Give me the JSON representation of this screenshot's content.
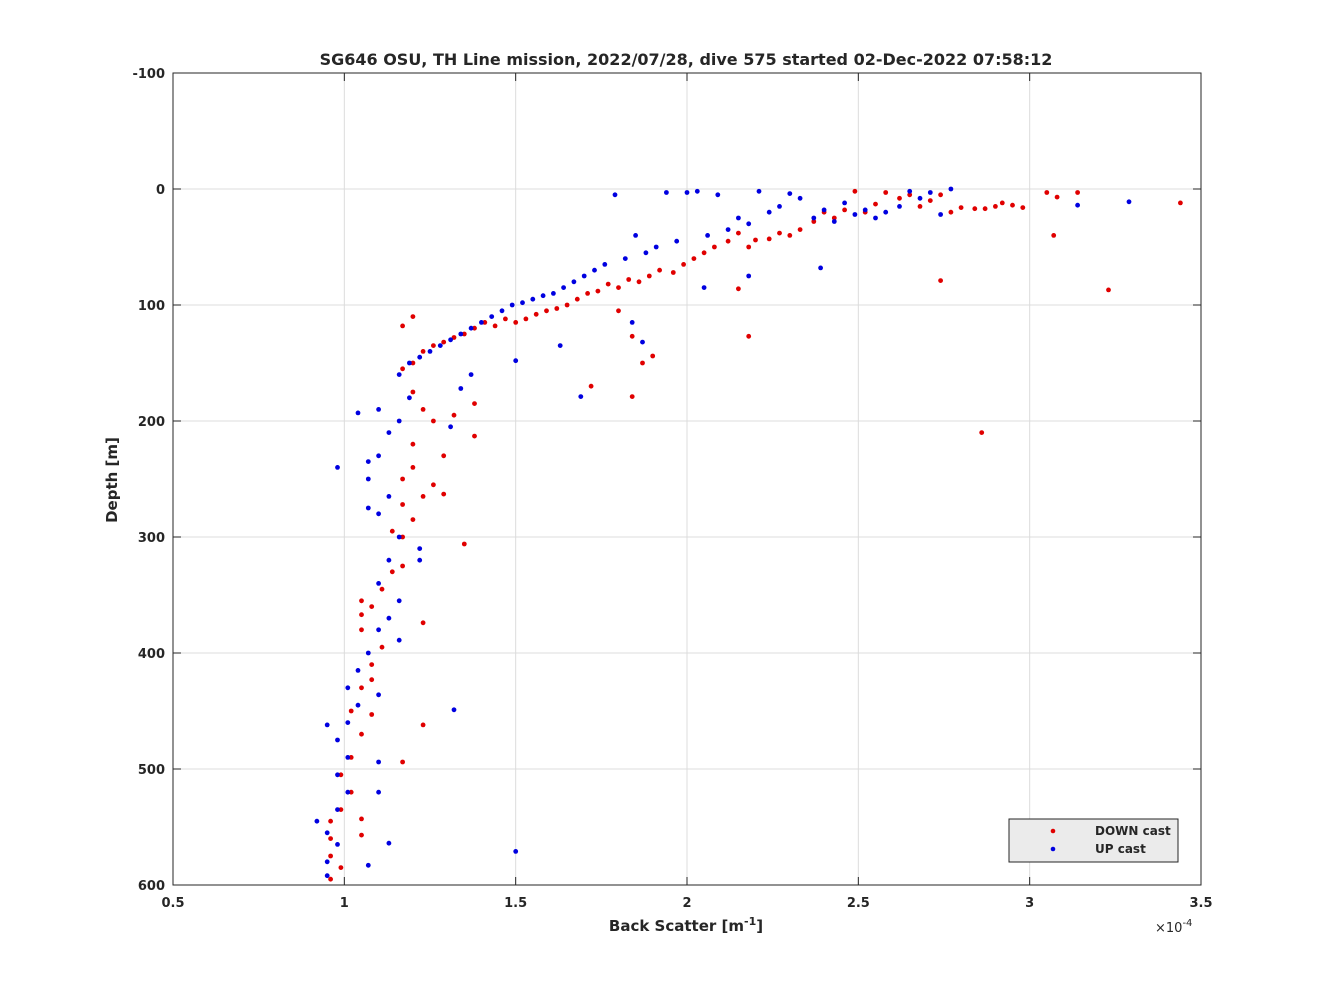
{
  "chart_data": {
    "type": "scatter",
    "title": "SG646 OSU, TH Line mission, 2022/07/28, dive 575 started 02-Dec-2022 07:58:12",
    "xlabel": "Back Scatter [m",
    "xlabel_sup": "-1",
    "xlabel_tail": "]",
    "ylabel": "Depth [m]",
    "x_multiplier_prefix": "×10",
    "x_multiplier_exp": "-4",
    "xlim": [
      0.5,
      3.5
    ],
    "ylim": [
      -100,
      600
    ],
    "y_reversed": true,
    "grid": true,
    "legend_position": "bottom-right",
    "xticks": [
      0.5,
      1,
      1.5,
      2,
      2.5,
      3,
      3.5
    ],
    "xtick_labels": [
      "0.5",
      "1",
      "1.5",
      "2",
      "2.5",
      "3",
      "3.5"
    ],
    "yticks": [
      -100,
      0,
      100,
      200,
      300,
      400,
      500,
      600
    ],
    "ytick_labels": [
      "-100",
      "0",
      "100",
      "200",
      "300",
      "400",
      "500",
      "600"
    ],
    "series": [
      {
        "name": "DOWN cast",
        "color": "#e00000",
        "points": [
          [
            3.44,
            12
          ],
          [
            3.14,
            3
          ],
          [
            3.08,
            7
          ],
          [
            3.05,
            3
          ],
          [
            2.98,
            16
          ],
          [
            2.95,
            14
          ],
          [
            2.92,
            12
          ],
          [
            2.9,
            15
          ],
          [
            2.87,
            17
          ],
          [
            2.84,
            17
          ],
          [
            2.8,
            16
          ],
          [
            2.77,
            20
          ],
          [
            2.74,
            5
          ],
          [
            2.71,
            10
          ],
          [
            2.68,
            15
          ],
          [
            2.65,
            5
          ],
          [
            2.62,
            8
          ],
          [
            2.58,
            3
          ],
          [
            2.55,
            13
          ],
          [
            2.52,
            20
          ],
          [
            2.49,
            2
          ],
          [
            2.46,
            18
          ],
          [
            2.43,
            25
          ],
          [
            2.4,
            20
          ],
          [
            2.37,
            28
          ],
          [
            2.33,
            35
          ],
          [
            2.3,
            40
          ],
          [
            2.27,
            38
          ],
          [
            2.24,
            43
          ],
          [
            2.2,
            44
          ],
          [
            2.18,
            50
          ],
          [
            2.15,
            38
          ],
          [
            2.12,
            45
          ],
          [
            2.08,
            50
          ],
          [
            2.05,
            55
          ],
          [
            2.02,
            60
          ],
          [
            1.99,
            65
          ],
          [
            1.96,
            72
          ],
          [
            1.92,
            70
          ],
          [
            1.89,
            75
          ],
          [
            1.86,
            80
          ],
          [
            1.83,
            78
          ],
          [
            1.8,
            85
          ],
          [
            1.77,
            82
          ],
          [
            1.74,
            88
          ],
          [
            1.71,
            90
          ],
          [
            1.68,
            95
          ],
          [
            1.65,
            100
          ],
          [
            1.62,
            103
          ],
          [
            1.59,
            105
          ],
          [
            1.56,
            108
          ],
          [
            1.53,
            112
          ],
          [
            1.5,
            115
          ],
          [
            1.47,
            112
          ],
          [
            1.44,
            118
          ],
          [
            1.41,
            115
          ],
          [
            1.38,
            120
          ],
          [
            1.35,
            125
          ],
          [
            1.32,
            128
          ],
          [
            1.29,
            132
          ],
          [
            1.26,
            135
          ],
          [
            1.23,
            140
          ],
          [
            1.2,
            150
          ],
          [
            1.17,
            155
          ],
          [
            1.2,
            175
          ],
          [
            1.23,
            190
          ],
          [
            1.26,
            200
          ],
          [
            1.2,
            220
          ],
          [
            1.17,
            250
          ],
          [
            1.23,
            265
          ],
          [
            1.2,
            285
          ],
          [
            1.17,
            300
          ],
          [
            1.14,
            330
          ],
          [
            1.11,
            345
          ],
          [
            1.08,
            360
          ],
          [
            1.05,
            380
          ],
          [
            1.11,
            395
          ],
          [
            1.08,
            410
          ],
          [
            1.05,
            430
          ],
          [
            1.02,
            450
          ],
          [
            1.05,
            470
          ],
          [
            1.02,
            490
          ],
          [
            0.99,
            505
          ],
          [
            1.02,
            520
          ],
          [
            0.99,
            535
          ],
          [
            0.96,
            545
          ],
          [
            0.96,
            560
          ],
          [
            0.96,
            575
          ],
          [
            0.99,
            585
          ],
          [
            0.96,
            595
          ],
          [
            3.07,
            40
          ],
          [
            3.23,
            87
          ],
          [
            2.74,
            79
          ],
          [
            2.86,
            210
          ],
          [
            2.18,
            127
          ],
          [
            2.15,
            86
          ],
          [
            1.84,
            179
          ],
          [
            1.72,
            170
          ],
          [
            1.9,
            144
          ],
          [
            1.87,
            150
          ],
          [
            1.84,
            127
          ],
          [
            1.8,
            105
          ],
          [
            1.38,
            213
          ],
          [
            1.35,
            306
          ],
          [
            1.23,
            374
          ],
          [
            1.23,
            462
          ],
          [
            1.17,
            494
          ],
          [
            1.2,
            110
          ],
          [
            1.17,
            118
          ],
          [
            1.26,
            255
          ],
          [
            1.29,
            263
          ],
          [
            1.32,
            195
          ],
          [
            1.38,
            185
          ],
          [
            1.29,
            230
          ],
          [
            1.2,
            240
          ],
          [
            1.17,
            272
          ],
          [
            1.14,
            295
          ],
          [
            1.17,
            325
          ],
          [
            1.05,
            355
          ],
          [
            1.05,
            367
          ],
          [
            1.08,
            423
          ],
          [
            1.08,
            453
          ],
          [
            1.05,
            543
          ],
          [
            1.05,
            557
          ]
        ]
      },
      {
        "name": "UP cast",
        "color": "#0000e0",
        "points": [
          [
            3.29,
            11
          ],
          [
            3.14,
            14
          ],
          [
            2.77,
            0
          ],
          [
            2.74,
            22
          ],
          [
            2.71,
            3
          ],
          [
            2.68,
            8
          ],
          [
            2.65,
            2
          ],
          [
            2.62,
            15
          ],
          [
            2.58,
            20
          ],
          [
            2.55,
            25
          ],
          [
            2.52,
            18
          ],
          [
            2.49,
            22
          ],
          [
            2.46,
            12
          ],
          [
            2.43,
            28
          ],
          [
            2.4,
            18
          ],
          [
            2.37,
            25
          ],
          [
            2.33,
            8
          ],
          [
            2.3,
            4
          ],
          [
            2.27,
            15
          ],
          [
            2.24,
            20
          ],
          [
            2.21,
            2
          ],
          [
            2.18,
            30
          ],
          [
            2.15,
            25
          ],
          [
            2.12,
            35
          ],
          [
            2.09,
            5
          ],
          [
            2.06,
            40
          ],
          [
            2.03,
            2
          ],
          [
            2.0,
            3
          ],
          [
            1.97,
            45
          ],
          [
            1.94,
            3
          ],
          [
            1.91,
            50
          ],
          [
            1.88,
            55
          ],
          [
            1.85,
            40
          ],
          [
            1.82,
            60
          ],
          [
            1.79,
            5
          ],
          [
            1.76,
            65
          ],
          [
            1.73,
            70
          ],
          [
            1.7,
            75
          ],
          [
            1.67,
            80
          ],
          [
            1.64,
            85
          ],
          [
            1.61,
            90
          ],
          [
            1.58,
            92
          ],
          [
            1.55,
            95
          ],
          [
            1.52,
            98
          ],
          [
            1.49,
            100
          ],
          [
            1.46,
            105
          ],
          [
            1.43,
            110
          ],
          [
            1.4,
            115
          ],
          [
            1.37,
            120
          ],
          [
            1.34,
            125
          ],
          [
            1.31,
            130
          ],
          [
            1.28,
            135
          ],
          [
            1.25,
            140
          ],
          [
            1.22,
            145
          ],
          [
            1.19,
            150
          ],
          [
            1.16,
            160
          ],
          [
            1.19,
            180
          ],
          [
            1.16,
            200
          ],
          [
            1.13,
            210
          ],
          [
            1.1,
            230
          ],
          [
            1.07,
            250
          ],
          [
            1.13,
            265
          ],
          [
            1.1,
            280
          ],
          [
            1.16,
            300
          ],
          [
            1.13,
            320
          ],
          [
            1.1,
            340
          ],
          [
            1.16,
            355
          ],
          [
            1.13,
            370
          ],
          [
            1.1,
            380
          ],
          [
            1.07,
            400
          ],
          [
            1.04,
            415
          ],
          [
            1.01,
            430
          ],
          [
            1.04,
            445
          ],
          [
            1.01,
            460
          ],
          [
            0.98,
            475
          ],
          [
            1.01,
            490
          ],
          [
            0.98,
            505
          ],
          [
            1.01,
            520
          ],
          [
            0.98,
            535
          ],
          [
            0.92,
            545
          ],
          [
            0.95,
            555
          ],
          [
            0.98,
            565
          ],
          [
            0.95,
            580
          ],
          [
            0.95,
            592
          ],
          [
            2.39,
            68
          ],
          [
            2.18,
            75
          ],
          [
            2.05,
            85
          ],
          [
            1.69,
            179
          ],
          [
            1.87,
            132
          ],
          [
            1.84,
            115
          ],
          [
            1.63,
            135
          ],
          [
            1.5,
            148
          ],
          [
            1.32,
            449
          ],
          [
            1.5,
            571
          ],
          [
            1.07,
            583
          ],
          [
            1.04,
            193
          ],
          [
            1.1,
            190
          ],
          [
            0.98,
            240
          ],
          [
            1.07,
            235
          ],
          [
            1.07,
            275
          ],
          [
            1.16,
            389
          ],
          [
            1.1,
            436
          ],
          [
            1.1,
            494
          ],
          [
            1.1,
            520
          ],
          [
            1.13,
            564
          ],
          [
            0.95,
            462
          ],
          [
            1.22,
            310
          ],
          [
            1.22,
            320
          ],
          [
            1.31,
            205
          ],
          [
            1.34,
            172
          ],
          [
            1.37,
            160
          ]
        ]
      }
    ]
  }
}
